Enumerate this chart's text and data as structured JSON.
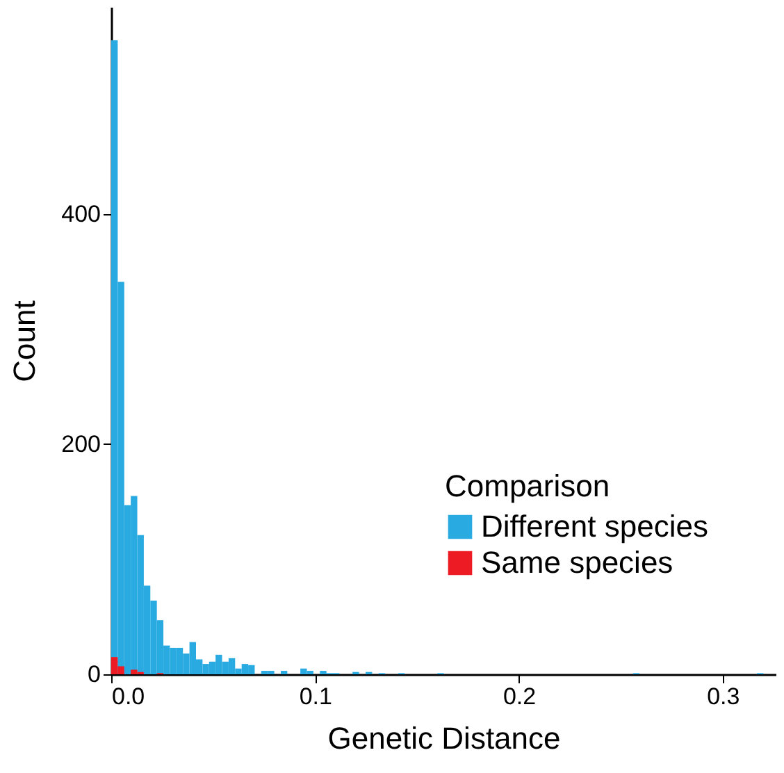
{
  "chart_data": {
    "type": "histogram",
    "xlabel": "Genetic Distance",
    "ylabel": "Count",
    "legend_title": "Comparison",
    "bins": [
      0,
      0.0032,
      0.0064,
      0.0096,
      0.0128,
      0.016,
      0.0192,
      0.0224,
      0.0256,
      0.0288,
      0.032,
      0.0352,
      0.0384,
      0.0416,
      0.0448,
      0.048,
      0.0512,
      0.0544,
      0.0576,
      0.0608,
      0.064,
      0.0672,
      0.0704,
      0.0736,
      0.0768,
      0.08,
      0.0832,
      0.0864,
      0.0896,
      0.0928,
      0.096,
      0.0992,
      0.1024,
      0.1056,
      0.1088,
      0.112,
      0.1152,
      0.1184,
      0.1216,
      0.1248,
      0.128,
      0.1312,
      0.1344,
      0.1376,
      0.1408,
      0.144,
      0.1472,
      0.1504,
      0.1536,
      0.1568,
      0.16,
      0.1632,
      0.1664,
      0.1696,
      0.1728,
      0.176,
      0.1792,
      0.1824,
      0.1856,
      0.1888,
      0.192,
      0.1952,
      0.1984,
      0.2016,
      0.2048,
      0.208,
      0.2112,
      0.2144,
      0.2176,
      0.2208,
      0.224,
      0.2272,
      0.2304,
      0.2336,
      0.2368,
      0.24,
      0.2432,
      0.2464,
      0.2496,
      0.2528,
      0.256,
      0.2592,
      0.2624,
      0.2656,
      0.2688,
      0.272,
      0.2752,
      0.2784,
      0.2816,
      0.2848,
      0.288,
      0.2912,
      0.2944,
      0.2976,
      0.3008,
      0.304,
      0.3072,
      0.3104,
      0.3136,
      0.3168,
      0.32
    ],
    "series": [
      {
        "name": "Different species",
        "color": "#29abe2",
        "values": [
          551,
          341,
          147,
          155,
          121,
          77,
          64,
          47,
          25,
          23,
          23,
          18,
          28,
          13,
          9,
          11,
          17,
          11,
          14,
          5,
          9,
          8,
          0,
          3,
          3,
          0,
          3,
          0,
          0,
          5,
          3,
          0,
          3,
          1,
          1,
          0,
          0,
          2,
          0,
          2,
          0,
          1,
          0,
          0,
          1,
          0,
          0,
          0,
          0,
          0,
          1,
          0,
          0,
          0,
          0,
          0,
          0,
          0,
          0,
          0,
          0,
          0,
          0,
          0,
          0,
          0,
          0,
          0,
          0,
          0,
          0,
          0,
          0,
          0,
          0,
          0,
          0,
          0,
          0,
          0,
          1,
          0,
          0,
          0,
          0,
          0,
          0,
          0,
          0,
          0,
          0,
          0,
          0,
          0,
          0,
          0,
          0,
          0,
          0,
          1
        ]
      },
      {
        "name": "Same species",
        "color": "#ed1c24",
        "values": [
          15,
          7,
          0,
          4,
          2,
          0,
          0,
          1,
          0,
          0,
          0,
          0,
          0,
          0,
          0,
          0,
          0,
          0,
          0,
          0,
          0,
          0,
          0,
          0,
          0,
          0,
          0,
          0,
          0,
          0,
          0,
          0,
          0,
          0,
          0,
          0,
          0,
          0,
          0,
          0,
          0,
          0,
          0,
          0,
          0,
          0,
          0,
          0,
          0,
          0,
          0,
          0,
          0,
          0,
          0,
          0,
          0,
          0,
          0,
          0,
          0,
          0,
          0,
          0,
          0,
          0,
          0,
          0,
          0,
          0,
          0,
          0,
          0,
          0,
          0,
          0,
          0,
          0,
          0,
          0,
          0,
          0,
          0,
          0,
          0,
          0,
          0,
          0,
          0,
          0,
          0,
          0,
          0,
          0,
          0,
          0,
          0,
          0,
          0,
          0
        ]
      }
    ],
    "xlim": [
      0,
      0.326
    ],
    "ylim": [
      0,
      580
    ],
    "xticks": [
      {
        "value": 0,
        "label": "0.0"
      },
      {
        "value": 0.1,
        "label": "0.1"
      },
      {
        "value": 0.2,
        "label": "0.2"
      },
      {
        "value": 0.3,
        "label": "0.3"
      }
    ],
    "yticks": [
      0,
      200,
      400
    ],
    "grid": false,
    "legend": "bottom right"
  }
}
